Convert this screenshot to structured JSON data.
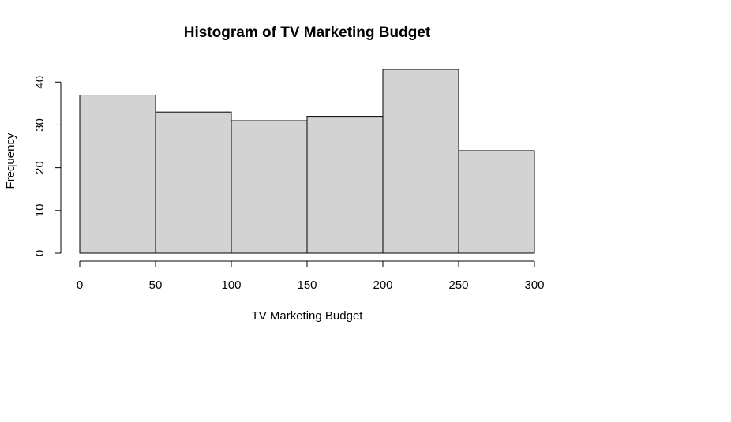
{
  "chart_data": {
    "type": "bar",
    "title": "Histogram of TV Marketing Budget",
    "xlabel": "TV Marketing Budget",
    "ylabel": "Frequency",
    "bins": [
      {
        "from": 0,
        "to": 50,
        "count": 37
      },
      {
        "from": 50,
        "to": 100,
        "count": 33
      },
      {
        "from": 100,
        "to": 150,
        "count": 31
      },
      {
        "from": 150,
        "to": 200,
        "count": 32
      },
      {
        "from": 200,
        "to": 250,
        "count": 43
      },
      {
        "from": 250,
        "to": 300,
        "count": 24
      }
    ],
    "xlim": [
      0,
      300
    ],
    "ylim": [
      0,
      43
    ],
    "x_ticks": [
      0,
      50,
      100,
      150,
      200,
      250,
      300
    ],
    "y_ticks": [
      0,
      10,
      20,
      30,
      40
    ],
    "bar_fill": "#d3d3d3",
    "bar_stroke": "#000000",
    "grid": false,
    "legend": "none"
  }
}
